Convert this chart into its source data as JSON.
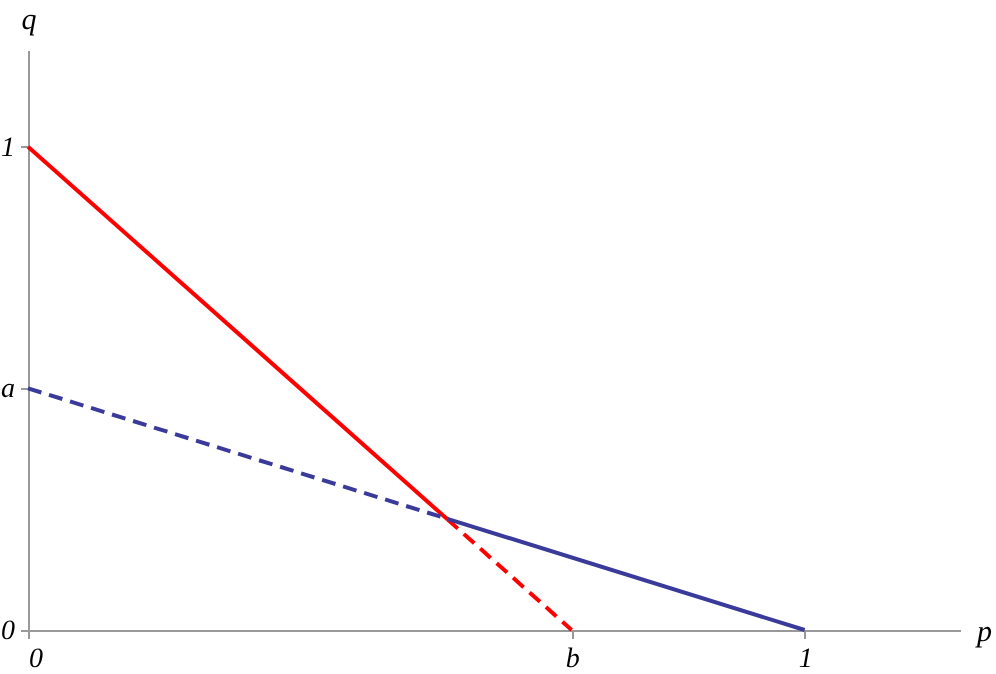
{
  "chart_data": {
    "type": "line",
    "xlabel": "p",
    "ylabel": "q",
    "xlim": [
      0,
      1.2
    ],
    "ylim": [
      0,
      1.2
    ],
    "xticks": [
      0,
      {
        "value": 0.7,
        "label": "b"
      },
      1
    ],
    "yticks": [
      0,
      {
        "value": 0.5,
        "label": "a"
      },
      1
    ],
    "grid": false,
    "marker": "none",
    "series": [
      {
        "color": "#ff0000",
        "line_style": "solid",
        "x": [
          0,
          0.54
        ],
        "values": [
          1,
          0.229
        ]
      },
      {
        "color": "#ff0000",
        "line_style": "dashed",
        "x": [
          0.54,
          0.7
        ],
        "values": [
          0.229,
          0
        ]
      },
      {
        "color": "#3a3a9a",
        "line_style": "dashed",
        "x": [
          0,
          0.54
        ],
        "values": [
          0.5,
          0.23
        ]
      },
      {
        "color": "#3a3a9a",
        "line_style": "solid",
        "x": [
          0.54,
          1
        ],
        "values": [
          0.23,
          0
        ]
      }
    ]
  }
}
